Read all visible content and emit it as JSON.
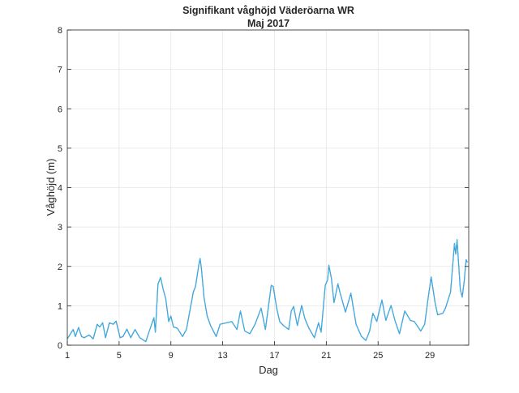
{
  "chart_data": {
    "type": "line",
    "title": "Signifikant våghöjd Väderöarna WR",
    "subtitle": "Maj 2017",
    "xlabel": "Dag",
    "ylabel": "Våghöjd (m)",
    "xlim": [
      1,
      32
    ],
    "ylim": [
      0,
      8
    ],
    "xticks": [
      1,
      5,
      9,
      13,
      17,
      21,
      25,
      29
    ],
    "yticks": [
      0,
      1,
      2,
      3,
      4,
      5,
      6,
      7,
      8
    ],
    "grid": true,
    "colors": {
      "line": "#0072BD",
      "overlay": "#4DBEEE",
      "grid": "#e6e6e6",
      "axis": "#262626"
    },
    "series": [
      {
        "name": "Våghöjd",
        "x": [
          1.0,
          1.46,
          1.62,
          1.87,
          2.1,
          2.3,
          2.69,
          3.0,
          3.31,
          3.5,
          3.73,
          3.95,
          4.25,
          4.55,
          4.77,
          5.08,
          5.3,
          5.6,
          5.9,
          6.23,
          6.6,
          7.06,
          7.3,
          7.69,
          7.8,
          8.0,
          8.2,
          8.4,
          8.6,
          8.83,
          9.0,
          9.2,
          9.5,
          9.9,
          10.2,
          10.73,
          10.9,
          11.15,
          11.25,
          11.35,
          11.56,
          11.8,
          12.06,
          12.5,
          12.8,
          13.3,
          13.7,
          14.1,
          14.37,
          14.7,
          15.1,
          15.5,
          15.97,
          16.3,
          16.75,
          16.9,
          17.17,
          17.4,
          17.69,
          18.1,
          18.3,
          18.48,
          18.77,
          19.1,
          19.35,
          19.66,
          20.08,
          20.4,
          20.6,
          20.92,
          21.1,
          21.2,
          21.4,
          21.6,
          21.9,
          22.05,
          22.48,
          22.9,
          23.3,
          23.7,
          24.05,
          24.35,
          24.6,
          24.9,
          25.3,
          25.6,
          26.0,
          26.3,
          26.65,
          27.06,
          27.5,
          27.8,
          28.3,
          28.6,
          28.9,
          29.1,
          29.4,
          29.6,
          30.0,
          30.2,
          30.6,
          30.9,
          31.0,
          31.1,
          31.35,
          31.5,
          31.65,
          31.8,
          31.9
        ],
        "y": [
          0.16,
          0.4,
          0.22,
          0.45,
          0.22,
          0.19,
          0.26,
          0.16,
          0.53,
          0.46,
          0.57,
          0.19,
          0.57,
          0.53,
          0.61,
          0.19,
          0.22,
          0.41,
          0.19,
          0.4,
          0.19,
          0.09,
          0.33,
          0.7,
          0.33,
          1.55,
          1.72,
          1.42,
          1.18,
          0.6,
          0.74,
          0.46,
          0.43,
          0.22,
          0.4,
          1.35,
          1.49,
          2.03,
          2.2,
          1.96,
          1.21,
          0.74,
          0.5,
          0.22,
          0.53,
          0.57,
          0.6,
          0.4,
          0.87,
          0.36,
          0.29,
          0.53,
          0.94,
          0.4,
          1.52,
          1.49,
          0.94,
          0.6,
          0.5,
          0.4,
          0.87,
          0.98,
          0.5,
          1.01,
          0.67,
          0.43,
          0.19,
          0.57,
          0.33,
          1.52,
          1.66,
          2.03,
          1.69,
          1.08,
          1.56,
          1.35,
          0.84,
          1.32,
          0.53,
          0.23,
          0.12,
          0.36,
          0.81,
          0.6,
          1.15,
          0.63,
          1.01,
          0.63,
          0.29,
          0.87,
          0.63,
          0.6,
          0.36,
          0.53,
          1.28,
          1.73,
          1.08,
          0.77,
          0.81,
          0.94,
          1.35,
          2.58,
          2.31,
          2.68,
          1.42,
          1.22,
          1.62,
          2.17,
          2.1
        ]
      }
    ]
  }
}
